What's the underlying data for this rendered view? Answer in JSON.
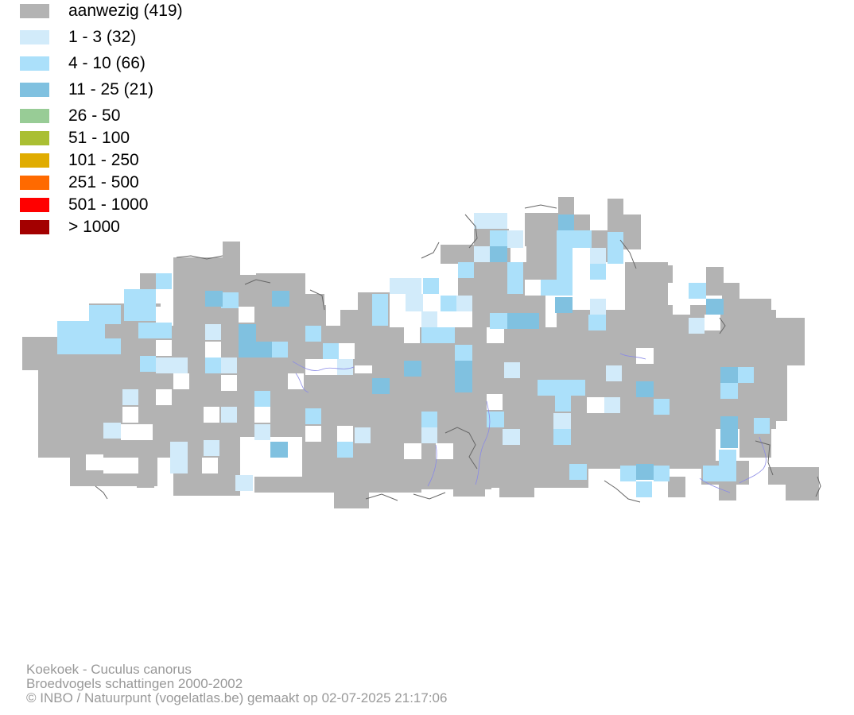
{
  "legend": {
    "items": [
      {
        "label": "aanwezig (419)",
        "color": "#b3b3b3"
      },
      {
        "label": "1 - 3 (32)",
        "color": "#d2ebfa"
      },
      {
        "label": "4 - 10 (66)",
        "color": "#abe0fa"
      },
      {
        "label": "11 - 25 (21)",
        "color": "#80c1e0"
      },
      {
        "label": "26 - 50",
        "color": "#98cc96"
      },
      {
        "label": "51 - 100",
        "color": "#aabf33"
      },
      {
        "label": "101 - 250",
        "color": "#e0ac00"
      },
      {
        "label": "251 - 500",
        "color": "#ff6a00"
      },
      {
        "label": "501 - 1000",
        "color": "#ff0000"
      },
      {
        "label": "> 1000",
        "color": "#a30000"
      }
    ]
  },
  "map": {
    "outline_color": "#666666",
    "river_color": "#8a8ae6"
  },
  "credits": {
    "line1": "Koekoek - Cuculus canorus",
    "line2": "Broedvogels schattingen 2000-2002",
    "line3": "© INBO / Natuurpunt (vogelatlas.be) gemaakt op 02-07-2025 21:17:06"
  }
}
